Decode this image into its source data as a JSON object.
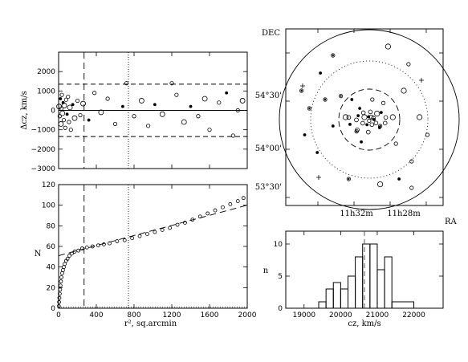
{
  "chart_data": [
    {
      "type": "scatter",
      "title": "",
      "xlabel": "",
      "ylabel": "Δcz, km/s",
      "xlim": [
        0,
        2000
      ],
      "ylim": [
        -3000,
        3000
      ],
      "yticks": [
        "2000",
        "1000",
        "0",
        "−1000",
        "−2000",
        "−3000"
      ],
      "ytick_values": [
        2000,
        1000,
        0,
        -1000,
        -2000,
        -3000
      ],
      "hlines": [
        1350,
        0,
        -1350
      ],
      "vlines": [
        {
          "x": 270,
          "style": "dashed"
        },
        {
          "x": 740,
          "style": "dotted"
        }
      ],
      "points": [
        {
          "x": 5,
          "y": 200
        },
        {
          "x": 12,
          "y": -300
        },
        {
          "x": 20,
          "y": 600
        },
        {
          "x": 25,
          "y": -700
        },
        {
          "x": 30,
          "y": 100
        },
        {
          "x": 35,
          "y": 800
        },
        {
          "x": 40,
          "y": -150
        },
        {
          "x": 48,
          "y": 400
        },
        {
          "x": 55,
          "y": -500
        },
        {
          "x": 60,
          "y": 250
        },
        {
          "x": 70,
          "y": -900
        },
        {
          "x": 80,
          "y": 550
        },
        {
          "x": 90,
          "y": -200
        },
        {
          "x": 100,
          "y": 700
        },
        {
          "x": 110,
          "y": -600
        },
        {
          "x": 120,
          "y": 150
        },
        {
          "x": 130,
          "y": -1000
        },
        {
          "x": 150,
          "y": 300
        },
        {
          "x": 170,
          "y": -400
        },
        {
          "x": 200,
          "y": 500
        },
        {
          "x": 230,
          "y": -250
        },
        {
          "x": 260,
          "y": 350
        },
        {
          "x": 320,
          "y": -500
        },
        {
          "x": 380,
          "y": 900
        },
        {
          "x": 450,
          "y": -100
        },
        {
          "x": 520,
          "y": 600
        },
        {
          "x": 600,
          "y": -700
        },
        {
          "x": 680,
          "y": 200
        },
        {
          "x": 720,
          "y": 1400
        },
        {
          "x": 800,
          "y": -300
        },
        {
          "x": 880,
          "y": 500
        },
        {
          "x": 950,
          "y": -800
        },
        {
          "x": 1020,
          "y": 300
        },
        {
          "x": 1100,
          "y": -200
        },
        {
          "x": 1200,
          "y": 1400
        },
        {
          "x": 1250,
          "y": 800
        },
        {
          "x": 1330,
          "y": -600
        },
        {
          "x": 1400,
          "y": 200
        },
        {
          "x": 1480,
          "y": -300
        },
        {
          "x": 1550,
          "y": 600
        },
        {
          "x": 1600,
          "y": -1000
        },
        {
          "x": 1700,
          "y": 400
        },
        {
          "x": 1780,
          "y": 900
        },
        {
          "x": 1850,
          "y": -1300
        },
        {
          "x": 1900,
          "y": 0
        },
        {
          "x": 1950,
          "y": 500
        }
      ]
    },
    {
      "type": "line",
      "title": "",
      "xlabel": "r², sq.arcmin",
      "ylabel": "N",
      "xlim": [
        0,
        2000
      ],
      "ylim": [
        0,
        120
      ],
      "xticks": [
        "0",
        "400",
        "800",
        "1200",
        "1600",
        "2000"
      ],
      "xtick_values": [
        0,
        400,
        800,
        1200,
        1600,
        2000
      ],
      "yticks": [
        "0",
        "20",
        "40",
        "60",
        "80",
        "100",
        "120"
      ],
      "ytick_values": [
        0,
        20,
        40,
        60,
        80,
        100,
        120
      ],
      "vlines": [
        {
          "x": 270,
          "style": "dashed"
        },
        {
          "x": 740,
          "style": "dotted"
        }
      ],
      "fit_line": {
        "x": [
          0,
          2000
        ],
        "y": [
          51,
          100
        ]
      },
      "cumulative": [
        {
          "x": 2,
          "y": 2
        },
        {
          "x": 5,
          "y": 6
        },
        {
          "x": 8,
          "y": 10
        },
        {
          "x": 12,
          "y": 14
        },
        {
          "x": 16,
          "y": 18
        },
        {
          "x": 20,
          "y": 22
        },
        {
          "x": 25,
          "y": 26
        },
        {
          "x": 30,
          "y": 30
        },
        {
          "x": 38,
          "y": 34
        },
        {
          "x": 46,
          "y": 37
        },
        {
          "x": 55,
          "y": 40
        },
        {
          "x": 65,
          "y": 43
        },
        {
          "x": 80,
          "y": 46
        },
        {
          "x": 95,
          "y": 48
        },
        {
          "x": 115,
          "y": 51
        },
        {
          "x": 140,
          "y": 53
        },
        {
          "x": 170,
          "y": 55
        },
        {
          "x": 210,
          "y": 56
        },
        {
          "x": 250,
          "y": 58
        },
        {
          "x": 300,
          "y": 59
        },
        {
          "x": 360,
          "y": 60
        },
        {
          "x": 420,
          "y": 61
        },
        {
          "x": 480,
          "y": 62
        },
        {
          "x": 540,
          "y": 63
        },
        {
          "x": 620,
          "y": 65
        },
        {
          "x": 700,
          "y": 66
        },
        {
          "x": 780,
          "y": 68
        },
        {
          "x": 860,
          "y": 70
        },
        {
          "x": 940,
          "y": 72
        },
        {
          "x": 1020,
          "y": 74
        },
        {
          "x": 1100,
          "y": 76
        },
        {
          "x": 1180,
          "y": 78
        },
        {
          "x": 1260,
          "y": 81
        },
        {
          "x": 1340,
          "y": 83
        },
        {
          "x": 1420,
          "y": 86
        },
        {
          "x": 1500,
          "y": 89
        },
        {
          "x": 1580,
          "y": 92
        },
        {
          "x": 1660,
          "y": 95
        },
        {
          "x": 1740,
          "y": 98
        },
        {
          "x": 1820,
          "y": 101
        },
        {
          "x": 1900,
          "y": 104
        },
        {
          "x": 1960,
          "y": 107
        }
      ]
    },
    {
      "type": "scatter",
      "title": "",
      "xlabel": "RA",
      "ylabel": "DEC",
      "xtick_labels": [
        "11h32m",
        "11h28m"
      ],
      "ytick_labels": [
        "54°30'",
        "54°00'",
        "53°30'"
      ],
      "circles": [
        {
          "radius_label": "outer",
          "style": "solid"
        },
        {
          "radius_label": "middle",
          "style": "dotted"
        },
        {
          "radius_label": "inner",
          "style": "dashed"
        }
      ],
      "points": [
        {
          "x": 0.5,
          "y": 0.5
        },
        {
          "x": 0.47,
          "y": 0.55
        },
        {
          "x": 0.53,
          "y": 0.48
        },
        {
          "x": 0.45,
          "y": 0.42
        },
        {
          "x": 0.58,
          "y": 0.52
        },
        {
          "x": 0.42,
          "y": 0.6
        },
        {
          "x": 0.55,
          "y": 0.6
        },
        {
          "x": 0.6,
          "y": 0.45
        },
        {
          "x": 0.38,
          "y": 0.5
        },
        {
          "x": 0.48,
          "y": 0.36
        },
        {
          "x": 0.62,
          "y": 0.58
        },
        {
          "x": 0.35,
          "y": 0.62
        },
        {
          "x": 0.68,
          "y": 0.5
        },
        {
          "x": 0.3,
          "y": 0.45
        },
        {
          "x": 0.7,
          "y": 0.35
        },
        {
          "x": 0.25,
          "y": 0.6
        },
        {
          "x": 0.75,
          "y": 0.65
        },
        {
          "x": 0.2,
          "y": 0.3
        },
        {
          "x": 0.8,
          "y": 0.25
        },
        {
          "x": 0.15,
          "y": 0.55
        },
        {
          "x": 0.85,
          "y": 0.5
        },
        {
          "x": 0.22,
          "y": 0.75
        },
        {
          "x": 0.78,
          "y": 0.8
        },
        {
          "x": 0.3,
          "y": 0.85
        },
        {
          "x": 0.65,
          "y": 0.9
        },
        {
          "x": 0.12,
          "y": 0.4
        },
        {
          "x": 0.9,
          "y": 0.4
        },
        {
          "x": 0.4,
          "y": 0.15
        },
        {
          "x": 0.6,
          "y": 0.12
        },
        {
          "x": 0.72,
          "y": 0.15
        },
        {
          "x": 0.8,
          "y": 0.1
        },
        {
          "x": 0.1,
          "y": 0.65
        }
      ]
    },
    {
      "type": "bar",
      "title": "",
      "xlabel": "cz, km/s",
      "ylabel": "n",
      "xlim": [
        18500,
        22800
      ],
      "ylim": [
        0,
        12
      ],
      "xticks": [
        "19000",
        "20000",
        "21000",
        "22000"
      ],
      "xtick_values": [
        19000,
        20000,
        21000,
        22000
      ],
      "yticks": [
        "0",
        "5",
        "10"
      ],
      "ytick_values": [
        0,
        5,
        10
      ],
      "bin_edges": [
        19400,
        19600,
        19800,
        20000,
        20200,
        20400,
        20600,
        20800,
        21000,
        21200,
        21400,
        22000
      ],
      "values": [
        1,
        3,
        4,
        3,
        5,
        8,
        10,
        10,
        6,
        8,
        1
      ],
      "mean_line": 20650
    }
  ]
}
